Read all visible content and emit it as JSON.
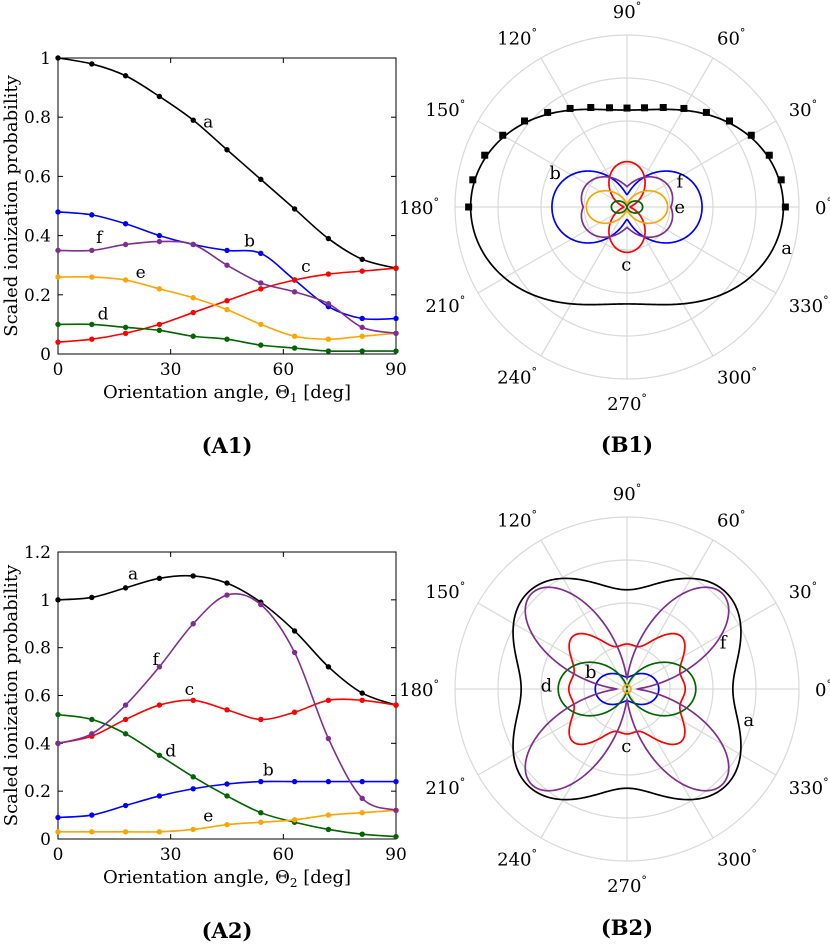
{
  "panels": {
    "A1": {
      "caption": "(A1)"
    },
    "B1": {
      "caption": "(B1)"
    },
    "A2": {
      "caption": "(A2)"
    },
    "B2": {
      "caption": "(B2)"
    }
  },
  "colors": {
    "a": "#000000",
    "b": "#0000ff",
    "c": "#ff0000",
    "d": "#006400",
    "e": "#ffa500",
    "f": "#7e2f8e",
    "grid": "#d9d9d9"
  },
  "chart_data": [
    {
      "id": "A1",
      "type": "line",
      "xlabel": "Orientation angle, Θ1 [deg]",
      "ylabel": "Scaled ionization probability",
      "xlim": [
        0,
        90
      ],
      "ylim": [
        0,
        1
      ],
      "xticks": [
        "0",
        "30",
        "60",
        "90"
      ],
      "yticks": [
        "0",
        "0.2",
        "0.4",
        "0.6",
        "0.8",
        "1"
      ],
      "x": [
        0,
        9,
        18,
        27,
        36,
        45,
        54,
        63,
        72,
        81,
        90
      ],
      "series": [
        {
          "name": "a",
          "color": "#000000",
          "values": [
            1.0,
            0.98,
            0.94,
            0.87,
            0.79,
            0.69,
            0.59,
            0.49,
            0.39,
            0.32,
            0.29
          ]
        },
        {
          "name": "b",
          "color": "#0000ff",
          "values": [
            0.48,
            0.47,
            0.44,
            0.4,
            0.37,
            0.35,
            0.34,
            0.25,
            0.16,
            0.12,
            0.12
          ]
        },
        {
          "name": "c",
          "color": "#ff0000",
          "values": [
            0.04,
            0.05,
            0.07,
            0.1,
            0.14,
            0.18,
            0.22,
            0.25,
            0.27,
            0.28,
            0.29
          ]
        },
        {
          "name": "d",
          "color": "#006400",
          "values": [
            0.1,
            0.1,
            0.09,
            0.08,
            0.06,
            0.05,
            0.03,
            0.02,
            0.01,
            0.01,
            0.01
          ]
        },
        {
          "name": "e",
          "color": "#ffa500",
          "values": [
            0.26,
            0.26,
            0.25,
            0.22,
            0.19,
            0.15,
            0.1,
            0.06,
            0.05,
            0.06,
            0.07
          ]
        },
        {
          "name": "f",
          "color": "#7e2f8e",
          "values": [
            0.35,
            0.35,
            0.37,
            0.38,
            0.37,
            0.3,
            0.24,
            0.21,
            0.17,
            0.09,
            0.07
          ]
        }
      ],
      "labels": [
        {
          "text": "a",
          "series": "a",
          "at_x": 40
        },
        {
          "text": "b",
          "series": "b",
          "at_x": 51
        },
        {
          "text": "c",
          "series": "c",
          "at_x": 66
        },
        {
          "text": "d",
          "series": "d",
          "at_x": 12
        },
        {
          "text": "e",
          "series": "e",
          "at_x": 22
        },
        {
          "text": "f",
          "series": "f",
          "at_x": 11
        }
      ]
    },
    {
      "id": "B1",
      "type": "polar",
      "angle_ticks": [
        "0°",
        "30°",
        "60°",
        "90°",
        "120°",
        "150°",
        "180°",
        "210°",
        "240°",
        "270°",
        "300°",
        "330°"
      ],
      "series": [
        {
          "name": "a",
          "color": "#000000",
          "base": 0.62,
          "amp": 0.38,
          "shape": "cos2"
        },
        {
          "name": "b",
          "color": "#0000ff",
          "base": 0.2,
          "amp": 0.28,
          "shape": "b1"
        },
        {
          "name": "c",
          "color": "#ff0000",
          "base": 0.02,
          "amp": 0.27,
          "shape": "sin2"
        },
        {
          "name": "d",
          "color": "#006400",
          "base": 0.0,
          "amp": 0.1,
          "shape": "cos2"
        },
        {
          "name": "e",
          "color": "#ffa500",
          "base": 0.02,
          "amp": 0.24,
          "shape": "cos2"
        },
        {
          "name": "f",
          "color": "#7e2f8e",
          "base": 0.28,
          "amp": 0.1,
          "shape": "f1"
        }
      ],
      "labels": [
        {
          "text": "a",
          "series": "a"
        },
        {
          "text": "b",
          "series": "b"
        },
        {
          "text": "c",
          "series": "c"
        },
        {
          "text": "e",
          "series": "e"
        },
        {
          "text": "f",
          "series": "f"
        }
      ]
    },
    {
      "id": "A2",
      "type": "line",
      "xlabel": "Orientation angle, Θ2 [deg]",
      "ylabel": "Scaled ionization probability",
      "xlim": [
        0,
        90
      ],
      "ylim": [
        0,
        1.2
      ],
      "xticks": [
        "0",
        "30",
        "60",
        "90"
      ],
      "yticks": [
        "0",
        "0.2",
        "0.4",
        "0.6",
        "0.8",
        "1",
        "1.2"
      ],
      "x": [
        0,
        9,
        18,
        27,
        36,
        45,
        54,
        63,
        72,
        81,
        90
      ],
      "series": [
        {
          "name": "a",
          "color": "#000000",
          "values": [
            1.0,
            1.01,
            1.05,
            1.09,
            1.1,
            1.07,
            0.99,
            0.87,
            0.72,
            0.61,
            0.56
          ]
        },
        {
          "name": "b",
          "color": "#0000ff",
          "values": [
            0.09,
            0.1,
            0.14,
            0.18,
            0.21,
            0.23,
            0.24,
            0.24,
            0.24,
            0.24,
            0.24
          ]
        },
        {
          "name": "c",
          "color": "#ff0000",
          "values": [
            0.4,
            0.43,
            0.5,
            0.56,
            0.58,
            0.54,
            0.5,
            0.53,
            0.58,
            0.58,
            0.56
          ]
        },
        {
          "name": "d",
          "color": "#006400",
          "values": [
            0.52,
            0.5,
            0.44,
            0.35,
            0.26,
            0.18,
            0.11,
            0.07,
            0.04,
            0.02,
            0.01
          ]
        },
        {
          "name": "e",
          "color": "#ffa500",
          "values": [
            0.03,
            0.03,
            0.03,
            0.03,
            0.04,
            0.06,
            0.07,
            0.08,
            0.1,
            0.11,
            0.12
          ]
        },
        {
          "name": "f",
          "color": "#7e2f8e",
          "values": [
            0.4,
            0.44,
            0.56,
            0.72,
            0.9,
            1.02,
            0.98,
            0.78,
            0.42,
            0.17,
            0.12
          ]
        }
      ],
      "labels": [
        {
          "text": "a",
          "series": "a",
          "at_x": 20
        },
        {
          "text": "b",
          "series": "b",
          "at_x": 56
        },
        {
          "text": "c",
          "series": "c",
          "at_x": 35
        },
        {
          "text": "d",
          "series": "d",
          "at_x": 30
        },
        {
          "text": "e",
          "series": "e",
          "at_x": 40
        },
        {
          "text": "f",
          "series": "f",
          "at_x": 26
        }
      ]
    },
    {
      "id": "B2",
      "type": "polar",
      "angle_ticks": [
        "0°",
        "30°",
        "60°",
        "90°",
        "120°",
        "150°",
        "180°",
        "210°",
        "240°",
        "270°",
        "300°",
        "330°"
      ],
      "series": [
        {
          "name": "a",
          "color": "#000000",
          "base": 0.75,
          "amp": 0.27,
          "shape": "a2"
        },
        {
          "name": "b",
          "color": "#0000ff",
          "base": 0.09,
          "amp": 0.15,
          "shape": "cos2"
        },
        {
          "name": "c",
          "color": "#ff0000",
          "base": 0.4,
          "amp": 0.18,
          "shape": "c2"
        },
        {
          "name": "d",
          "color": "#006400",
          "base": 0.01,
          "amp": 0.51,
          "shape": "cos2"
        },
        {
          "name": "e",
          "color": "#ffa500",
          "base": 0.03,
          "amp": 0.0,
          "shape": "cos2"
        },
        {
          "name": "f",
          "color": "#7e2f8e",
          "base": 0.08,
          "amp": 0.94,
          "shape": "f2"
        }
      ],
      "labels": [
        {
          "text": "a",
          "series": "a"
        },
        {
          "text": "b",
          "series": "b"
        },
        {
          "text": "c",
          "series": "c"
        },
        {
          "text": "d",
          "series": "d"
        },
        {
          "text": "f",
          "series": "f"
        }
      ]
    }
  ]
}
